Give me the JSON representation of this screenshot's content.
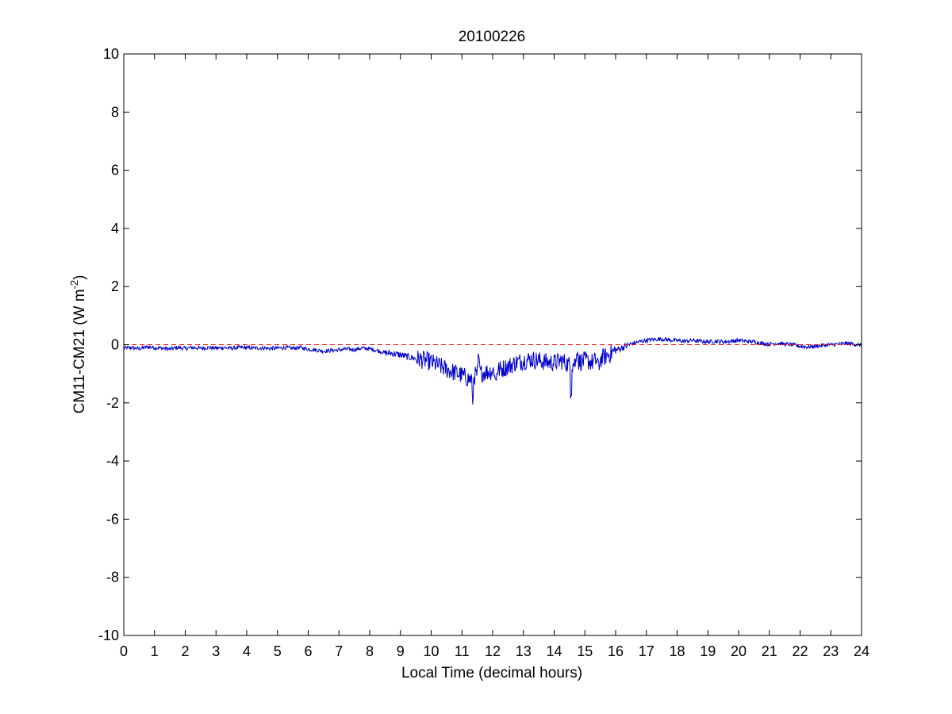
{
  "chart_data": {
    "type": "line",
    "title": "20100226",
    "xlabel": "Local Time (decimal hours)",
    "ylabel_main": "CM11-CM21 (W m",
    "ylabel_sup": "-2",
    "ylabel_close": ")",
    "xlim": [
      0,
      24
    ],
    "ylim": [
      -10,
      10
    ],
    "xticks": [
      0,
      1,
      2,
      3,
      4,
      5,
      6,
      7,
      8,
      9,
      10,
      11,
      12,
      13,
      14,
      15,
      16,
      17,
      18,
      19,
      20,
      21,
      22,
      23,
      24
    ],
    "yticks": [
      -10,
      -8,
      -6,
      -4,
      -2,
      0,
      2,
      4,
      6,
      8,
      10
    ],
    "grid": false,
    "reference_line": {
      "y": 0,
      "color": "#ff0000",
      "style": "dashed"
    },
    "series": [
      {
        "color": "#0000cc",
        "points": [
          [
            0.0,
            -0.12
          ],
          [
            0.25,
            -0.1
          ],
          [
            0.5,
            -0.14
          ],
          [
            0.75,
            -0.08
          ],
          [
            1.0,
            -0.1
          ],
          [
            1.25,
            -0.12
          ],
          [
            1.5,
            -0.15
          ],
          [
            1.75,
            -0.1
          ],
          [
            2.0,
            -0.13
          ],
          [
            2.25,
            -0.1
          ],
          [
            2.5,
            -0.12
          ],
          [
            2.75,
            -0.1
          ],
          [
            3.0,
            -0.12
          ],
          [
            3.25,
            -0.1
          ],
          [
            3.5,
            -0.12
          ],
          [
            3.75,
            -0.1
          ],
          [
            4.0,
            -0.1
          ],
          [
            4.25,
            -0.12
          ],
          [
            4.5,
            -0.11
          ],
          [
            4.75,
            -0.13
          ],
          [
            5.0,
            -0.12
          ],
          [
            5.25,
            -0.1
          ],
          [
            5.5,
            -0.12
          ],
          [
            5.75,
            -0.1
          ],
          [
            6.0,
            -0.15
          ],
          [
            6.25,
            -0.18
          ],
          [
            6.5,
            -0.22
          ],
          [
            6.75,
            -0.2
          ],
          [
            7.0,
            -0.18
          ],
          [
            7.25,
            -0.15
          ],
          [
            7.5,
            -0.17
          ],
          [
            7.75,
            -0.12
          ],
          [
            8.0,
            -0.14
          ],
          [
            8.25,
            -0.2
          ],
          [
            8.5,
            -0.28
          ],
          [
            8.75,
            -0.3
          ],
          [
            9.0,
            -0.35
          ],
          [
            9.25,
            -0.42
          ],
          [
            9.5,
            -0.48
          ],
          [
            9.75,
            -0.52
          ],
          [
            10.0,
            -0.6
          ],
          [
            10.25,
            -0.72
          ],
          [
            10.5,
            -0.85
          ],
          [
            10.75,
            -0.95
          ],
          [
            11.0,
            -1.05
          ],
          [
            11.25,
            -1.2
          ],
          [
            11.5,
            -1.0
          ],
          [
            11.75,
            -0.95
          ],
          [
            12.0,
            -0.9
          ],
          [
            12.25,
            -0.85
          ],
          [
            12.5,
            -0.75
          ],
          [
            12.75,
            -0.62
          ],
          [
            13.0,
            -0.55
          ],
          [
            13.25,
            -0.5
          ],
          [
            13.5,
            -0.55
          ],
          [
            13.75,
            -0.6
          ],
          [
            14.0,
            -0.62
          ],
          [
            14.25,
            -0.55
          ],
          [
            14.5,
            -0.7
          ],
          [
            14.75,
            -0.6
          ],
          [
            15.0,
            -0.55
          ],
          [
            15.25,
            -0.6
          ],
          [
            15.5,
            -0.5
          ],
          [
            15.75,
            -0.35
          ],
          [
            16.0,
            -0.2
          ],
          [
            16.25,
            -0.08
          ],
          [
            16.5,
            0.02
          ],
          [
            16.75,
            0.1
          ],
          [
            17.0,
            0.15
          ],
          [
            17.25,
            0.18
          ],
          [
            17.5,
            0.2
          ],
          [
            17.75,
            0.16
          ],
          [
            18.0,
            0.14
          ],
          [
            18.25,
            0.12
          ],
          [
            18.5,
            0.15
          ],
          [
            18.75,
            0.12
          ],
          [
            19.0,
            0.1
          ],
          [
            19.25,
            0.12
          ],
          [
            19.5,
            0.1
          ],
          [
            19.75,
            0.12
          ],
          [
            20.0,
            0.15
          ],
          [
            20.25,
            0.12
          ],
          [
            20.5,
            0.1
          ],
          [
            20.75,
            0.05
          ],
          [
            21.0,
            0.02
          ],
          [
            21.25,
            0.05
          ],
          [
            21.5,
            0.02
          ],
          [
            21.75,
            0.0
          ],
          [
            22.0,
            -0.05
          ],
          [
            22.25,
            -0.08
          ],
          [
            22.5,
            -0.05
          ],
          [
            22.75,
            -0.02
          ],
          [
            23.0,
            0.0
          ],
          [
            23.25,
            0.02
          ],
          [
            23.5,
            0.05
          ],
          [
            23.75,
            0.02
          ],
          [
            24.0,
            -0.02
          ]
        ]
      }
    ]
  }
}
